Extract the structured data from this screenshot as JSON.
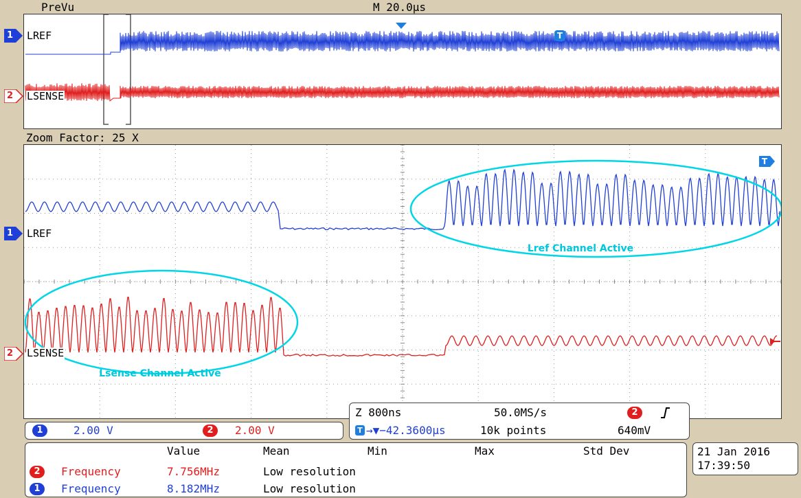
{
  "header": {
    "preview_label": "PreVu",
    "timebase": "M 20.0µs"
  },
  "zoom": {
    "label": "Zoom Factor: 25 X"
  },
  "channels": [
    {
      "number": "1",
      "name": "LREF",
      "color": "#1f3fd6"
    },
    {
      "number": "2",
      "name": "LSENSE",
      "color": "#e01e1e"
    }
  ],
  "trigger_marker": "T",
  "annotations": {
    "lref": "Lref Channel Active",
    "lsense": "Lsense Channel Active",
    "color": "#00d6e6"
  },
  "scale_bar": {
    "ch1_number": "1",
    "ch1_scale": "2.00 V",
    "ch2_number": "2",
    "ch2_scale": "2.00 V"
  },
  "acquisition": {
    "zoom_timebase": "Z 800ns",
    "sample_rate": "50.0MS/s",
    "trigger_channel": "2",
    "trigger_slope": "rising-edge-icon",
    "position": "→▼−42.3600µs",
    "record_length": "10k points",
    "trigger_level": "640mV"
  },
  "measurements": {
    "headers": [
      "Value",
      "Mean",
      "Min",
      "Max",
      "Std Dev"
    ],
    "rows": [
      {
        "channel": "2",
        "name": "Frequency",
        "value": "7.756MHz",
        "note": "Low resolution",
        "color": "#e01e1e"
      },
      {
        "channel": "1",
        "name": "Frequency",
        "value": "8.182MHz",
        "note": "Low resolution",
        "color": "#1f3fd6"
      }
    ]
  },
  "datetime": {
    "date": "21 Jan  2016",
    "time": "17:39:50"
  }
}
